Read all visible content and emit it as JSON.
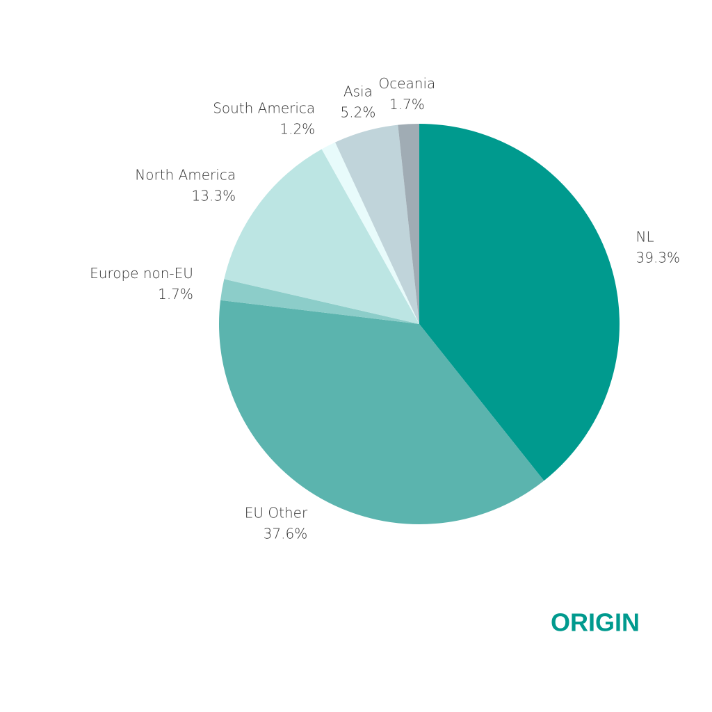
{
  "chart_data": {
    "type": "pie",
    "title": "ORIGIN",
    "categories": [
      "NL",
      "EU Other",
      "Europe non-EU",
      "North America",
      "South America",
      "Asia",
      "Oceania"
    ],
    "values": [
      39.3,
      37.6,
      1.7,
      13.3,
      1.2,
      5.2,
      1.7
    ],
    "value_labels": [
      "39.3%",
      "37.6%",
      "1.7%",
      "13.3%",
      "1.2%",
      "5.2%",
      "1.7%"
    ],
    "colors": [
      "#009a8e",
      "#5bb4ae",
      "#8ccdc9",
      "#bce5e3",
      "#e8fbfb",
      "#c0d4da",
      "#a0acb4"
    ]
  }
}
